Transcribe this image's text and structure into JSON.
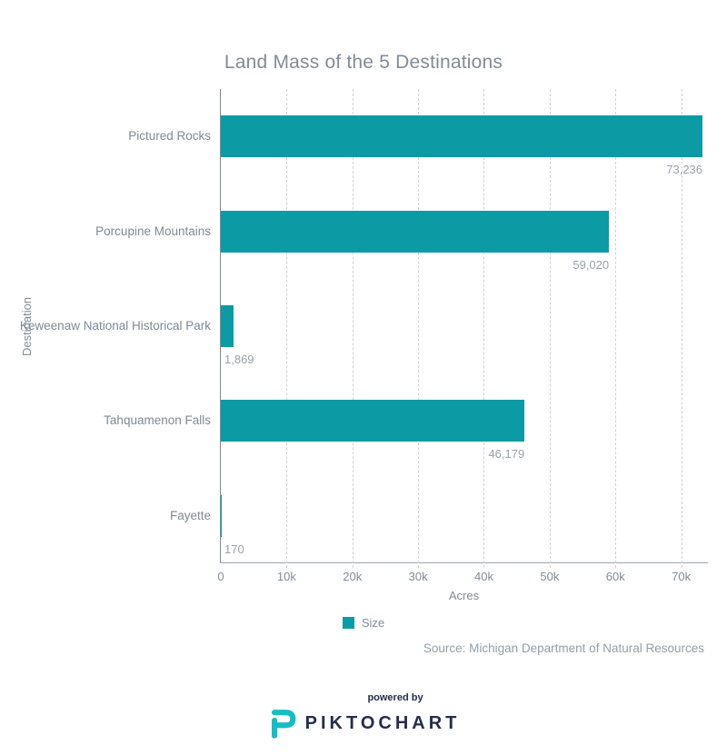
{
  "title": "Land Mass of the 5 Destinations",
  "y_axis_label": "Destination",
  "x_axis_label": "Acres",
  "legend": {
    "label": "Size",
    "swatch_color": "#0c9aa4"
  },
  "source": "Source: Michigan Department of Natural Resources",
  "footer": {
    "powered_by": "powered by",
    "brand": "PIKTOCHART"
  },
  "colors": {
    "bar": "#0c9aa4",
    "title_text": "#7f8c98",
    "label_text": "#7e8a96",
    "value_text": "#98a2ab",
    "gridline": "#cdd3d8",
    "axis_line": "#7e8894",
    "brand_navy": "#242e49",
    "logo_teal": "#17bdc6"
  },
  "chart_data": {
    "type": "bar",
    "orientation": "horizontal",
    "title": "Land Mass of the 5 Destinations",
    "xlabel": "Acres",
    "ylabel": "Destination",
    "categories": [
      "Pictured Rocks",
      "Porcupine Mountains",
      "Keweenaw National Historical Park",
      "Tahquamenon Falls",
      "Fayette"
    ],
    "series": [
      {
        "name": "Size",
        "values": [
          73236,
          59020,
          1869,
          46179,
          170
        ]
      }
    ],
    "value_labels": [
      "73,236",
      "59,020",
      "1,869",
      "46,179",
      "170"
    ],
    "xlim": [
      0,
      74200
    ],
    "x_ticks": [
      {
        "value": 0,
        "label": "0"
      },
      {
        "value": 10000,
        "label": "10k"
      },
      {
        "value": 20000,
        "label": "20k"
      },
      {
        "value": 30000,
        "label": "30k"
      },
      {
        "value": 40000,
        "label": "40k"
      },
      {
        "value": 50000,
        "label": "50k"
      },
      {
        "value": 60000,
        "label": "60k"
      },
      {
        "value": 70000,
        "label": "70k"
      }
    ],
    "grid": "vertical-dashed",
    "legend_position": "bottom-center"
  }
}
